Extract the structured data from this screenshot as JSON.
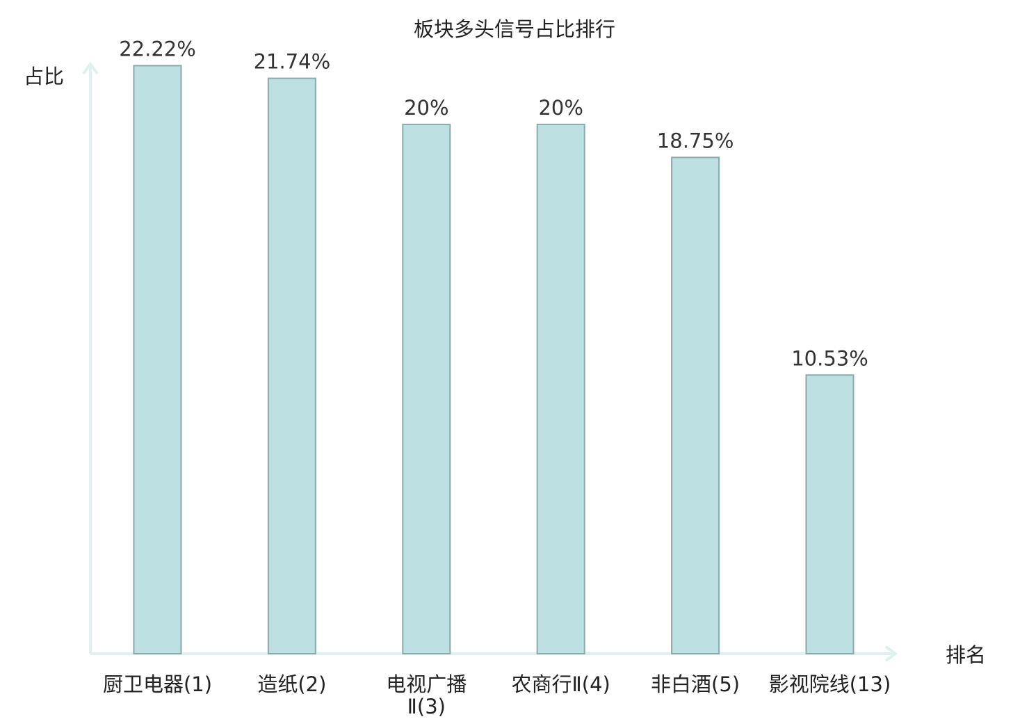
{
  "chart_data": {
    "type": "bar",
    "title": "板块多头信号占比排行",
    "xlabel": "排名",
    "ylabel": "占比",
    "categories": [
      [
        "厨卫电器(1)"
      ],
      [
        "造纸(2)"
      ],
      [
        "电视广播",
        "Ⅱ(3)"
      ],
      [
        "农商行Ⅱ(4)"
      ],
      [
        "非白酒(5)"
      ],
      [
        "影视院线(13)"
      ]
    ],
    "highlight_index": 5,
    "values": [
      22.22,
      21.74,
      20,
      20,
      18.75,
      10.53
    ],
    "value_labels": [
      "22.22%",
      "21.74%",
      "20%",
      "20%",
      "18.75%",
      "10.53%"
    ],
    "ylim": [
      0,
      24.7
    ],
    "grid": false,
    "legend": "none",
    "colors": {
      "bar_fill": "#bde0e3",
      "bar_stroke": "#8aa9ab",
      "axis": "#dff0ee",
      "text": "#222222",
      "value_text": "#333333",
      "highlight": "#e0161b"
    }
  }
}
